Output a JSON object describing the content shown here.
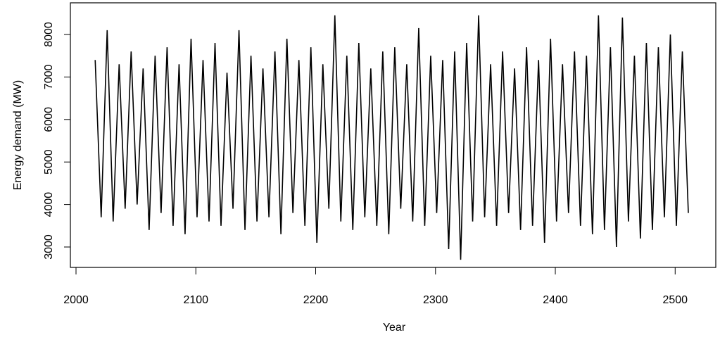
{
  "chart_data": {
    "type": "line",
    "x_label": "Year",
    "y_label": "Energy demand (MW)",
    "xlim": [
      1995.3,
      2533.9
    ],
    "ylim": [
      2520,
      8745
    ],
    "xticks": [
      2000,
      2100,
      2200,
      2300,
      2400,
      2500
    ],
    "yticks": [
      3000,
      4000,
      5000,
      6000,
      7000,
      8000
    ],
    "grid": false,
    "series": [
      {
        "name": "Energy demand",
        "color": "#000000",
        "x": [
          2016,
          2021,
          2026,
          2031,
          2036,
          2041,
          2046,
          2051,
          2056,
          2061,
          2066,
          2071,
          2076,
          2081,
          2086,
          2091,
          2096,
          2101,
          2106,
          2111,
          2116,
          2121,
          2126,
          2131,
          2136,
          2141,
          2146,
          2151,
          2156,
          2161,
          2166,
          2171,
          2176,
          2181,
          2186,
          2191,
          2196,
          2201,
          2206,
          2211,
          2216,
          2221,
          2226,
          2231,
          2236,
          2241,
          2246,
          2251,
          2256,
          2261,
          2266,
          2271,
          2276,
          2281,
          2286,
          2291,
          2296,
          2301,
          2306,
          2311,
          2316,
          2321,
          2326,
          2331,
          2336,
          2341,
          2346,
          2351,
          2356,
          2361,
          2366,
          2371,
          2376,
          2381,
          2386,
          2391,
          2396,
          2401,
          2406,
          2411,
          2416,
          2421,
          2426,
          2431,
          2436,
          2441,
          2446,
          2451,
          2456,
          2461,
          2466,
          2471,
          2476,
          2481,
          2486,
          2491,
          2496,
          2501,
          2506,
          2511
        ],
        "values": [
          7400,
          3700,
          8100,
          3600,
          7300,
          3900,
          7600,
          4000,
          7200,
          3400,
          7500,
          3800,
          7700,
          3500,
          7300,
          3300,
          7900,
          3700,
          7400,
          3600,
          7800,
          3500,
          7100,
          3900,
          8100,
          3400,
          7500,
          3600,
          7200,
          3700,
          7600,
          3300,
          7900,
          3800,
          7400,
          3500,
          7700,
          3100,
          7300,
          3900,
          8450,
          3600,
          7500,
          3400,
          7800,
          3700,
          7200,
          3500,
          7600,
          3300,
          7700,
          3900,
          7300,
          3600,
          8150,
          3500,
          7500,
          3800,
          7400,
          2950,
          7600,
          2700,
          7800,
          3600,
          8450,
          3700,
          7300,
          3500,
          7600,
          3800,
          7200,
          3400,
          7700,
          3500,
          7400,
          3100,
          7900,
          3600,
          7300,
          3800,
          7600,
          3500,
          7500,
          3300,
          8450,
          3400,
          7700,
          3000,
          8400,
          3600,
          7500,
          3200,
          7800,
          3400,
          7700,
          3700,
          8000,
          3500,
          7600,
          3800
        ]
      }
    ]
  }
}
